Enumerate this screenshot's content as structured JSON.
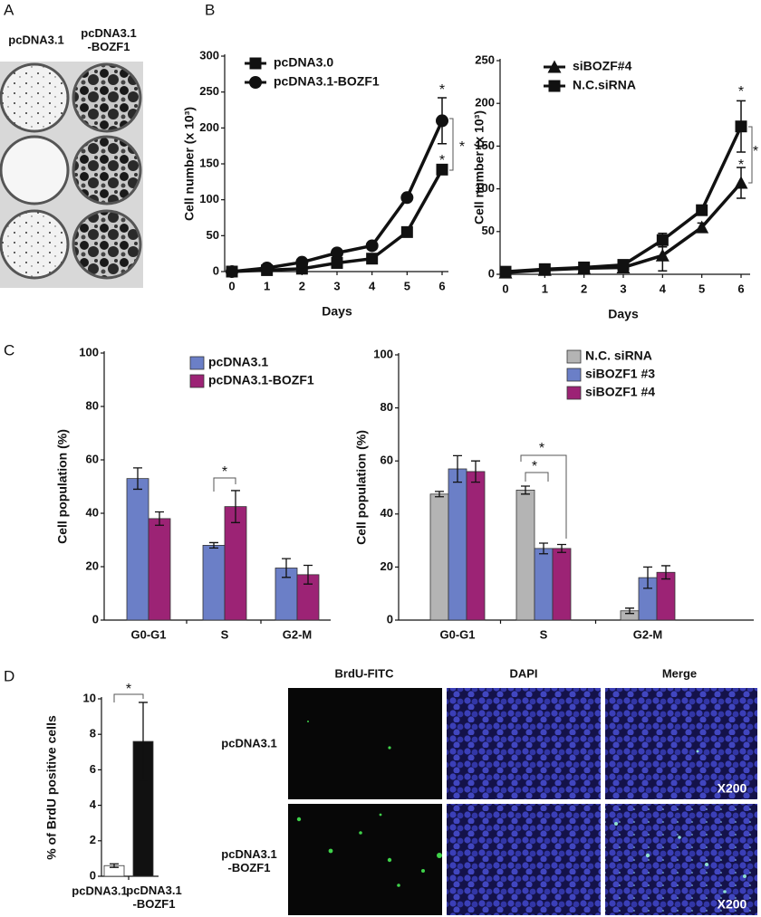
{
  "figure": {
    "panel_labels": [
      "A",
      "B",
      "C",
      "D"
    ],
    "colony": {
      "columns": [
        "pcDNA3.1",
        "pcDNA3.1\n-BOZF1"
      ]
    },
    "microscopy": {
      "columns": [
        "BrdU-FITC",
        "DAPI",
        "Merge"
      ],
      "rows": [
        "pcDNA3.1",
        "pcDNA3.1\n-BOZF1"
      ],
      "magnification": [
        "X200",
        "X200"
      ]
    }
  },
  "chart_data": [
    {
      "type": "line",
      "y_label": "Cell number (x 10³)",
      "x_label": "Days",
      "x": [
        0,
        1,
        2,
        3,
        4,
        5,
        6
      ],
      "xlim": [
        0,
        6
      ],
      "xticks": [
        0,
        1,
        2,
        3,
        4,
        5,
        6
      ],
      "ylim": [
        0,
        300
      ],
      "yticks": [
        0,
        50,
        100,
        150,
        200,
        250,
        300
      ],
      "legend": "upper-left",
      "series": [
        {
          "name": "pcDNA3.0",
          "color": "#111111",
          "marker": "square",
          "values": [
            0,
            2,
            4,
            12,
            18,
            55,
            142
          ],
          "errors": [
            2,
            1,
            2,
            4,
            4,
            4,
            5
          ]
        },
        {
          "name": "pcDNA3.1-BOZF1",
          "color": "#111111",
          "marker": "circle",
          "values": [
            0,
            5,
            13,
            26,
            36,
            103,
            210
          ],
          "errors": [
            2,
            2,
            3,
            4,
            4,
            5,
            32
          ]
        }
      ],
      "annotations": [
        "*",
        "*",
        "*"
      ]
    },
    {
      "type": "line",
      "y_label": "Cell number (x 10³)",
      "x_label": "Days",
      "x": [
        0,
        1,
        2,
        3,
        4,
        5,
        6
      ],
      "xlim": [
        0,
        6
      ],
      "xticks": [
        0,
        1,
        2,
        3,
        4,
        5,
        6
      ],
      "ylim": [
        0,
        250
      ],
      "yticks": [
        0,
        50,
        100,
        150,
        200,
        250
      ],
      "legend": "upper-left",
      "series": [
        {
          "name": "siBOZF#4",
          "color": "#111111",
          "marker": "triangle",
          "values": [
            2,
            5,
            7,
            8,
            22,
            55,
            107
          ],
          "errors": [
            2,
            2,
            2,
            2,
            18,
            5,
            18
          ]
        },
        {
          "name": "N.C.siRNA",
          "color": "#111111",
          "marker": "square",
          "values": [
            3,
            6,
            8,
            11,
            40,
            75,
            173
          ],
          "errors": [
            2,
            2,
            2,
            3,
            8,
            5,
            30
          ]
        }
      ],
      "annotations": [
        "*",
        "*",
        "*"
      ]
    },
    {
      "type": "bar",
      "y_label": "Cell population (%)",
      "categories": [
        "G0-G1",
        "S",
        "G2-M"
      ],
      "ylim": [
        0,
        100
      ],
      "yticks": [
        0,
        20,
        40,
        60,
        80,
        100
      ],
      "legend": "upper-center",
      "series": [
        {
          "name": "pcDNA3.1",
          "color": "#6b7fc7",
          "values": [
            53,
            28,
            19.5
          ],
          "errors": [
            4,
            1,
            3.5
          ]
        },
        {
          "name": "pcDNA3.1-BOZF1",
          "color": "#9c2375",
          "values": [
            38,
            42.5,
            17
          ],
          "errors": [
            2.5,
            6,
            3.5
          ]
        }
      ],
      "annotations": [
        "*"
      ]
    },
    {
      "type": "bar",
      "y_label": "Cell population (%)",
      "categories": [
        "G0-G1",
        "S",
        "G2-M"
      ],
      "ylim": [
        0,
        100
      ],
      "yticks": [
        0,
        20,
        40,
        60,
        80,
        100
      ],
      "legend": "upper-right",
      "series": [
        {
          "name": "N.C. siRNA",
          "color": "#b4b4b4",
          "values": [
            47.5,
            49,
            3.5
          ],
          "errors": [
            1,
            1.5,
            1
          ]
        },
        {
          "name": "siBOZF1 #3",
          "color": "#6b7fc7",
          "values": [
            57,
            27,
            16
          ],
          "errors": [
            5,
            2,
            4
          ]
        },
        {
          "name": "siBOZF1 #4",
          "color": "#9c2375",
          "values": [
            56,
            27,
            18
          ],
          "errors": [
            4,
            1.5,
            2.5
          ]
        }
      ],
      "annotations": [
        "*",
        "*"
      ]
    },
    {
      "type": "bar",
      "y_label": "% of BrdU positive cells",
      "categories": [
        "pcDNA3.1",
        "pcDNA3.1\n-BOZF1"
      ],
      "ylim": [
        0,
        10
      ],
      "yticks": [
        0,
        2,
        4,
        6,
        8,
        10
      ],
      "series": [
        {
          "colors": [
            "#ffffff",
            "#111111"
          ],
          "values": [
            0.6,
            7.6
          ],
          "errors": [
            0.1,
            2.2
          ]
        }
      ],
      "annotations": [
        "*"
      ]
    }
  ]
}
